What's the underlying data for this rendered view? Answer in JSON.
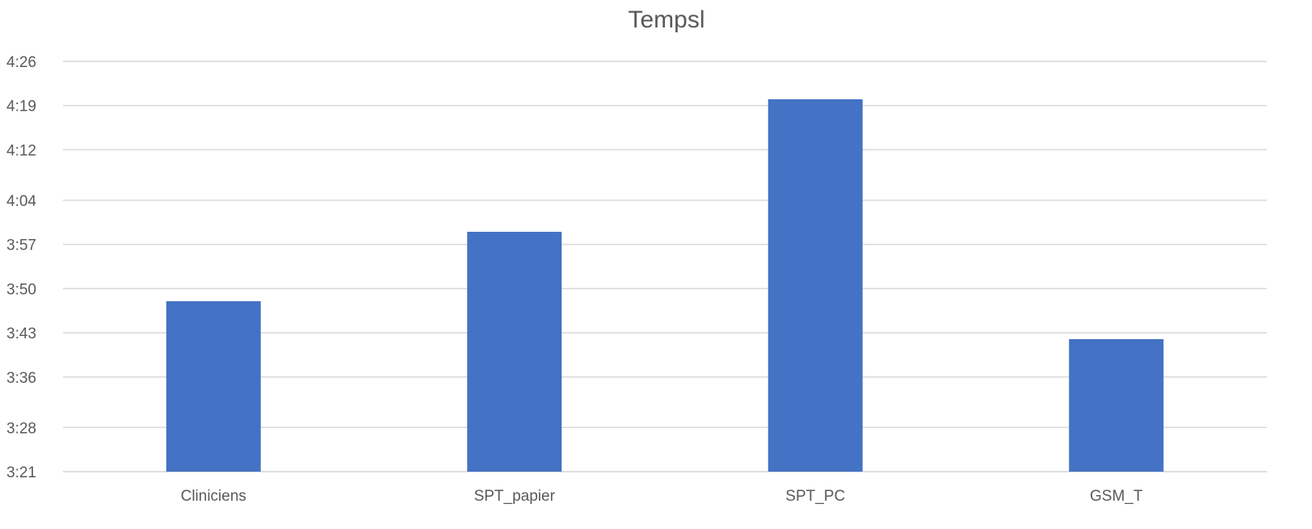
{
  "chart_data": {
    "type": "bar",
    "title": "Tempsl",
    "xlabel": "",
    "ylabel": "",
    "categories": [
      "Cliniciens",
      "SPT_papier",
      "SPT_PC",
      "GSM_T"
    ],
    "values": [
      "3:48",
      "3:59",
      "4:20",
      "3:42"
    ],
    "y_ticks": [
      "3:21",
      "3:28",
      "3:36",
      "3:43",
      "3:50",
      "3:57",
      "4:04",
      "4:12",
      "4:19",
      "4:26"
    ],
    "ylim": [
      "3:21",
      "4:26"
    ],
    "grid": true,
    "legend": "none"
  },
  "colors": {
    "bar": "#4472c4",
    "grid": "#d9d9d9",
    "axis_text": "#595959",
    "title_text": "#595959"
  }
}
